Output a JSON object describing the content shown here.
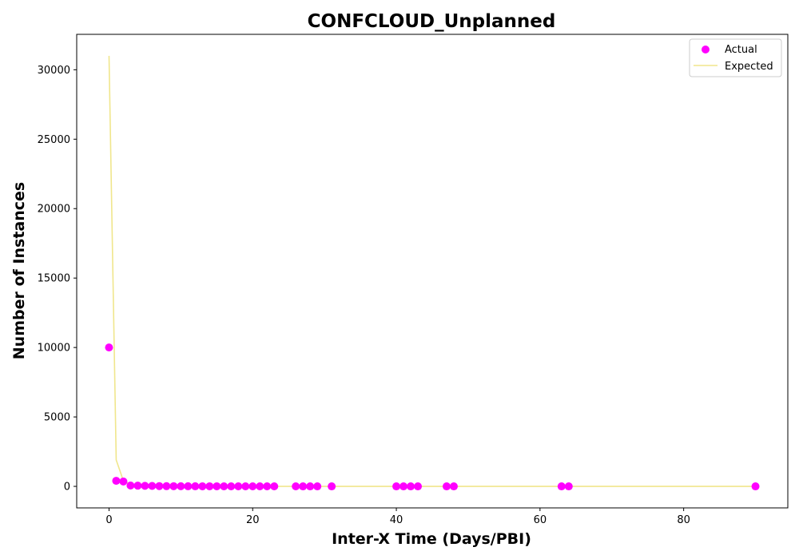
{
  "chart_data": {
    "type": "scatter",
    "title": "CONFCLOUD_Unplanned",
    "xlabel": "Inter-X Time (Days/PBI)",
    "ylabel": "Number of Instances",
    "xlim": [
      -4.5,
      94.5
    ],
    "ylim": [
      -1550,
      32550
    ],
    "xticks": [
      0,
      20,
      40,
      60,
      80
    ],
    "yticks": [
      0,
      5000,
      10000,
      15000,
      20000,
      25000,
      30000
    ],
    "grid": false,
    "legend_position": "top-right",
    "colors": {
      "actual": "#ff00ff",
      "expected": "#f0e68c",
      "axes": "#000000"
    },
    "series": [
      {
        "name": "Actual",
        "kind": "scatter",
        "x": [
          0,
          1,
          2,
          3,
          4,
          5,
          6,
          7,
          8,
          9,
          10,
          11,
          12,
          13,
          14,
          15,
          16,
          17,
          18,
          19,
          20,
          21,
          22,
          23,
          26,
          27,
          28,
          29,
          31,
          40,
          41,
          42,
          43,
          47,
          48,
          63,
          64,
          90
        ],
        "y": [
          10000,
          400,
          350,
          60,
          50,
          40,
          30,
          20,
          15,
          12,
          10,
          8,
          7,
          6,
          5,
          5,
          4,
          4,
          3,
          3,
          3,
          2,
          2,
          2,
          2,
          1,
          1,
          1,
          1,
          1,
          1,
          1,
          1,
          1,
          1,
          1,
          1,
          1
        ]
      },
      {
        "name": "Expected",
        "kind": "line",
        "x": [
          0,
          1,
          2,
          3,
          4,
          5,
          6,
          8,
          10,
          15,
          20,
          30,
          40,
          60,
          90
        ],
        "y": [
          31000,
          1900,
          400,
          150,
          80,
          50,
          35,
          20,
          12,
          6,
          3,
          1,
          0.5,
          0.2,
          0.1
        ]
      }
    ]
  }
}
